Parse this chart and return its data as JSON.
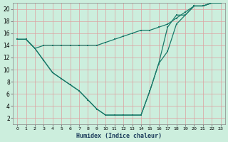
{
  "xlabel": "Humidex (Indice chaleur)",
  "background_color": "#cceedd",
  "grid_color": "#dda0a0",
  "line_color": "#1a7a6a",
  "xlim": [
    -0.5,
    23.5
  ],
  "ylim": [
    1,
    21
  ],
  "xticks": [
    0,
    1,
    2,
    3,
    4,
    5,
    6,
    7,
    8,
    9,
    10,
    11,
    12,
    13,
    14,
    15,
    16,
    17,
    18,
    19,
    20,
    21,
    22,
    23
  ],
  "yticks": [
    2,
    4,
    6,
    8,
    10,
    12,
    14,
    16,
    18,
    20
  ],
  "line1_x": [
    0,
    1,
    2,
    3,
    4,
    5,
    6,
    7,
    8,
    9,
    10,
    11,
    12,
    13,
    14,
    15,
    16,
    17,
    18,
    19,
    20,
    21,
    22,
    23
  ],
  "line1_y": [
    15.0,
    15.0,
    13.5,
    14.0,
    14.0,
    14.0,
    14.0,
    14.0,
    14.0,
    14.0,
    14.5,
    15.0,
    15.5,
    16.0,
    16.5,
    16.5,
    17.0,
    17.5,
    18.5,
    19.5,
    20.5,
    20.5,
    21.0,
    21.0
  ],
  "line2_x": [
    0,
    1,
    2,
    3,
    4,
    5,
    6,
    7,
    8,
    9,
    10,
    11,
    12,
    13,
    14,
    15,
    16,
    17,
    18,
    19,
    20,
    21,
    22,
    23
  ],
  "line2_y": [
    15.0,
    15.0,
    13.5,
    11.5,
    9.5,
    8.5,
    7.5,
    6.5,
    5.0,
    3.5,
    2.5,
    2.5,
    2.5,
    2.5,
    2.5,
    6.5,
    11.0,
    13.0,
    17.5,
    19.0,
    20.5,
    20.5,
    21.0,
    21.0
  ],
  "line3_x": [
    0,
    1,
    2,
    3,
    4,
    5,
    6,
    7,
    8,
    9,
    10,
    11,
    12,
    13,
    14,
    15,
    16,
    17,
    18,
    19,
    20,
    21,
    22,
    23
  ],
  "line3_y": [
    15.0,
    15.0,
    13.5,
    11.5,
    9.5,
    8.5,
    7.5,
    6.5,
    5.0,
    3.5,
    2.5,
    2.5,
    2.5,
    2.5,
    2.5,
    6.5,
    11.0,
    17.0,
    19.0,
    19.0,
    20.5,
    20.5,
    21.0,
    21.0
  ]
}
